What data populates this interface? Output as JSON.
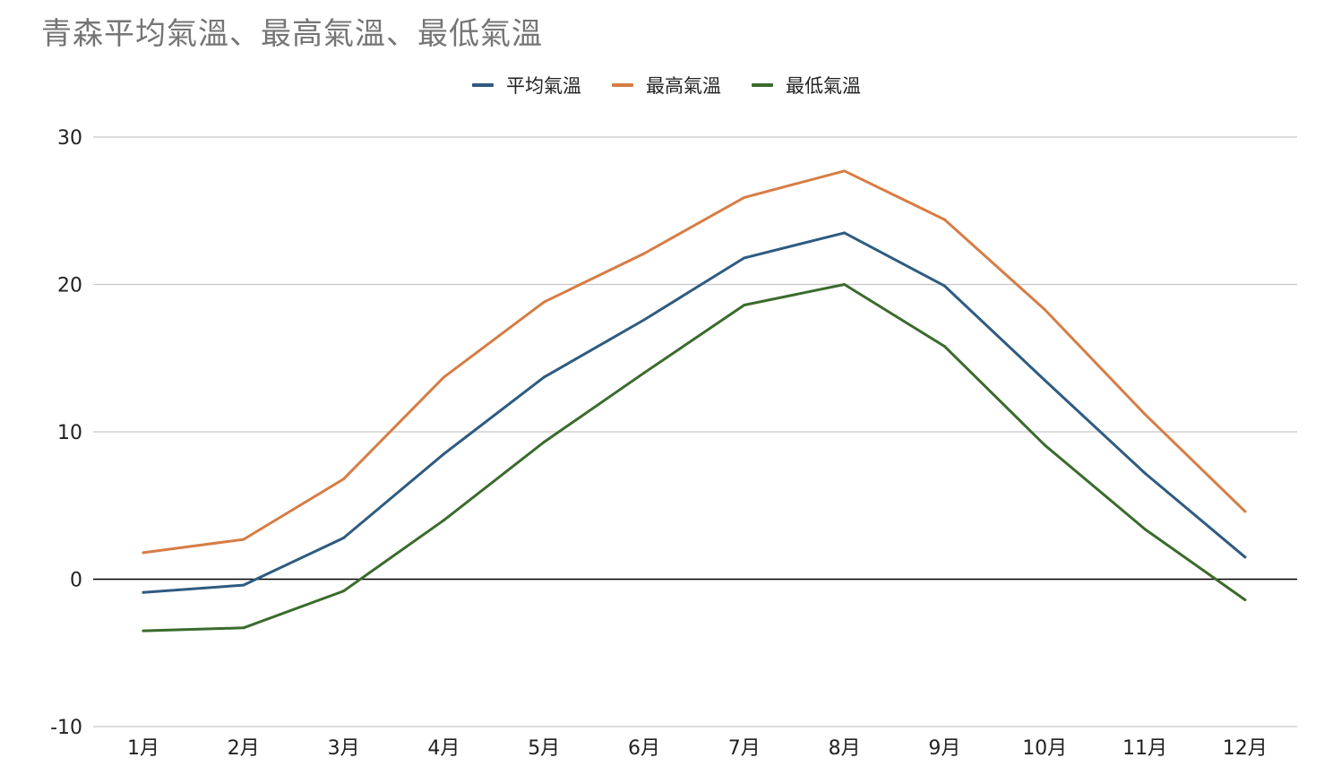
{
  "chart_data": {
    "type": "line",
    "title": "青森平均氣溫、最高氣溫、最低氣溫",
    "xlabel": "",
    "ylabel": "",
    "categories": [
      "1月",
      "2月",
      "3月",
      "4月",
      "5月",
      "6月",
      "7月",
      "8月",
      "9月",
      "10月",
      "11月",
      "12月"
    ],
    "series": [
      {
        "name": "平均氣溫",
        "color": "#2e5b80",
        "values": [
          -0.9,
          -0.4,
          2.8,
          8.5,
          13.7,
          17.6,
          21.8,
          23.5,
          19.9,
          13.5,
          7.2,
          1.5
        ]
      },
      {
        "name": "最高氣溫",
        "color": "#d67d45",
        "values": [
          1.8,
          2.7,
          6.8,
          13.7,
          18.8,
          22.1,
          25.9,
          27.7,
          24.4,
          18.3,
          11.2,
          4.6
        ]
      },
      {
        "name": "最低氣溫",
        "color": "#3a6b2c",
        "values": [
          -3.5,
          -3.3,
          -0.8,
          4.0,
          9.3,
          14.0,
          18.6,
          20.0,
          15.8,
          9.1,
          3.4,
          -1.4
        ]
      }
    ],
    "ylim": [
      -10,
      30
    ],
    "yticks": [
      30,
      20,
      10,
      0,
      -10
    ],
    "grid": true,
    "legend": "top-center"
  }
}
